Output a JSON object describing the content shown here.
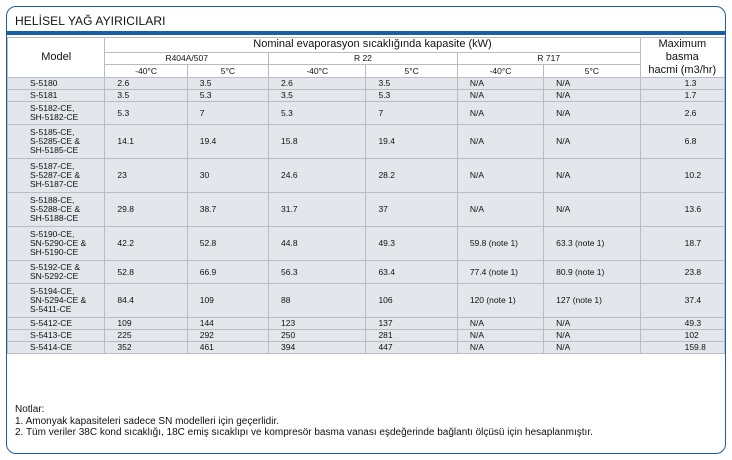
{
  "title": "HELİSEL YAĞ AYIRICILARI",
  "header": {
    "model": "Model",
    "nominal": "Nominal evaporasyon sıcaklığında kapasite (kW)",
    "max_line1": "Maximum basma",
    "max_line2": "hacmi (m3/hr)",
    "refrigerants": [
      "R404A/507",
      "R 22",
      "R 717"
    ],
    "temps": [
      "-40°C",
      "5°C",
      "-40°C",
      "5°C",
      "-40°C",
      "5°C"
    ]
  },
  "rows": [
    {
      "model": [
        "S-5180"
      ],
      "values": [
        "2.6",
        "3.5",
        "2.6",
        "3.5",
        "N/A",
        "N/A",
        "1.3"
      ]
    },
    {
      "model": [
        "S-5181"
      ],
      "values": [
        "3.5",
        "5.3",
        "3.5",
        "5.3",
        "N/A",
        "N/A",
        "1.7"
      ]
    },
    {
      "model": [
        "S-5182-CE,",
        "SH-5182-CE"
      ],
      "values": [
        "5.3",
        "7",
        "5.3",
        "7",
        "N/A",
        "N/A",
        "2.6"
      ]
    },
    {
      "model": [
        "S-5185-CE,",
        "S-5285-CE &",
        "SH-5185-CE"
      ],
      "values": [
        "14.1",
        "19.4",
        "15.8",
        "19.4",
        "N/A",
        "N/A",
        "6.8"
      ]
    },
    {
      "model": [
        "S-5187-CE,",
        "S-5287-CE &",
        "SH-5187-CE"
      ],
      "values": [
        "23",
        "30",
        "24.6",
        "28.2",
        "N/A",
        "N/A",
        "10.2"
      ]
    },
    {
      "model": [
        "S-5188-CE,",
        "S-5288-CE &",
        "SH-5188-CE"
      ],
      "values": [
        "29.8",
        "38.7",
        "31.7",
        "37",
        "N/A",
        "N/A",
        "13.6"
      ]
    },
    {
      "model": [
        "S-5190-CE,",
        "SN-5290-CE &",
        "SH-5190-CE"
      ],
      "values": [
        "42.2",
        "52.8",
        "44.8",
        "49.3",
        "59.8 (note 1)",
        "63.3 (note 1)",
        "18.7"
      ]
    },
    {
      "model": [
        "S-5192-CE &",
        "SN-5292-CE"
      ],
      "values": [
        "52.8",
        "66.9",
        "56.3",
        "63.4",
        "77.4 (note 1)",
        "80.9 (note 1)",
        "23.8"
      ]
    },
    {
      "model": [
        "S-5194-CE,",
        "SN-5294-CE &",
        "S-5411-CE"
      ],
      "values": [
        "84.4",
        "109",
        "88",
        "106",
        "120 (note 1)",
        "127 (note 1)",
        "37.4"
      ]
    },
    {
      "model": [
        "S-5412-CE"
      ],
      "values": [
        "109",
        "144",
        "123",
        "137",
        "N/A",
        "N/A",
        "49.3"
      ]
    },
    {
      "model": [
        "S-5413-CE"
      ],
      "values": [
        "225",
        "292",
        "250",
        "281",
        "N/A",
        "N/A",
        "102"
      ]
    },
    {
      "model": [
        "S-5414-CE"
      ],
      "values": [
        "352",
        "461",
        "394",
        "447",
        "N/A",
        "N/A",
        "159.8"
      ]
    }
  ],
  "notes": {
    "heading": "Notlar:",
    "items": [
      "1. Amonyak kapasiteleri sadece SN modelleri için geçerlidir.",
      "2. Tüm veriler 38C kond sıcaklığı, 18C emiş sıcaklıpı ve kompresör basma vanası eşdeğerinde bağlantı ölçüsü için hesaplanmıştır."
    ]
  }
}
